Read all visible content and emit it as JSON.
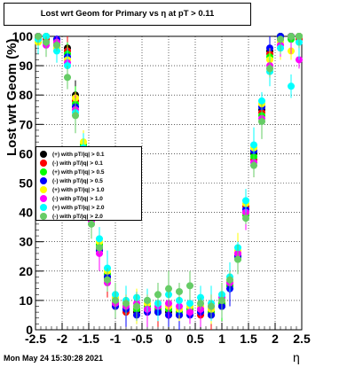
{
  "timestamp": "Mon May 24 15:30:28 2021",
  "chart_data": {
    "type": "scatter",
    "title": "Lost wrt Geom for Primary vs   η at pT > 0.11",
    "ylabel": "Lost wrt Geom (%)",
    "xlabel": "η",
    "xlim": [
      -2.5,
      2.5
    ],
    "ylim": [
      0,
      100
    ],
    "xticks": [
      "-2.5",
      "-2",
      "-1.5",
      "-1",
      "-0.5",
      "0",
      "0.5",
      "1",
      "1.5",
      "2",
      "2.5"
    ],
    "yticks": [
      "0",
      "10",
      "20",
      "30",
      "40",
      "50",
      "60",
      "70",
      "80",
      "90",
      "100"
    ],
    "grid": true,
    "legend_position": "left-middle",
    "series": [
      {
        "name": "(+) with pT/|q| > 0.1",
        "color": "#000000",
        "x": [
          -2.45,
          -2.3,
          -2.1,
          -1.9,
          -1.75,
          -1.6,
          -1.45,
          -1.3,
          -1.15,
          -1.0,
          -0.8,
          -0.6,
          -0.4,
          -0.2,
          0.0,
          0.2,
          0.4,
          0.6,
          0.8,
          1.0,
          1.15,
          1.3,
          1.45,
          1.6,
          1.75,
          1.9,
          2.1,
          2.3,
          2.45
        ],
        "y": [
          100,
          100,
          99,
          96,
          80,
          62,
          40,
          28,
          18,
          9,
          7,
          6,
          7,
          6,
          6,
          5,
          6,
          6,
          5,
          8,
          15,
          25,
          40,
          60,
          75,
          95,
          100,
          100,
          100
        ]
      },
      {
        "name": "(-) with pT/|q| > 0.1",
        "color": "#ff0000",
        "x": [
          -2.45,
          -2.3,
          -2.1,
          -1.9,
          -1.75,
          -1.6,
          -1.45,
          -1.3,
          -1.15,
          -1.0,
          -0.8,
          -0.6,
          -0.4,
          -0.2,
          0.0,
          0.2,
          0.4,
          0.6,
          0.8,
          1.0,
          1.15,
          1.3,
          1.45,
          1.6,
          1.75,
          1.9,
          2.1,
          2.3,
          2.45
        ],
        "y": [
          100,
          99,
          98,
          95,
          78,
          60,
          38,
          27,
          17,
          8,
          6,
          7,
          6,
          7,
          5,
          6,
          7,
          5,
          6,
          9,
          16,
          26,
          42,
          58,
          74,
          94,
          99,
          100,
          99
        ]
      },
      {
        "name": "(+) with pT/|q| > 0.5",
        "color": "#00ff00",
        "x": [
          -2.45,
          -2.3,
          -2.1,
          -1.9,
          -1.75,
          -1.6,
          -1.45,
          -1.3,
          -1.15,
          -1.0,
          -0.8,
          -0.6,
          -0.4,
          -0.2,
          0.0,
          0.2,
          0.4,
          0.6,
          0.8,
          1.0,
          1.15,
          1.3,
          1.45,
          1.6,
          1.75,
          1.9,
          2.1,
          2.3,
          2.45
        ],
        "y": [
          99,
          100,
          97,
          94,
          77,
          63,
          41,
          29,
          19,
          10,
          8,
          7,
          8,
          7,
          7,
          6,
          7,
          7,
          6,
          9,
          15,
          24,
          39,
          59,
          73,
          93,
          100,
          99,
          100
        ]
      },
      {
        "name": "(-) with pT/|q| > 0.5",
        "color": "#0000ff",
        "x": [
          -2.45,
          -2.3,
          -2.1,
          -1.9,
          -1.75,
          -1.6,
          -1.45,
          -1.3,
          -1.15,
          -1.0,
          -0.8,
          -0.6,
          -0.4,
          -0.2,
          0.0,
          0.2,
          0.4,
          0.6,
          0.8,
          1.0,
          1.15,
          1.3,
          1.45,
          1.6,
          1.75,
          1.9,
          2.1,
          2.3,
          2.45
        ],
        "y": [
          100,
          98,
          99,
          93,
          76,
          61,
          39,
          27,
          18,
          8,
          7,
          5,
          6,
          6,
          5,
          5,
          5,
          6,
          5,
          8,
          14,
          25,
          41,
          61,
          76,
          96,
          100,
          100,
          100
        ]
      },
      {
        "name": "(+) with pT/|q| > 1.0",
        "color": "#ffff00",
        "x": [
          -2.45,
          -2.3,
          -2.1,
          -1.9,
          -1.75,
          -1.6,
          -1.45,
          -1.3,
          -1.15,
          -1.0,
          -0.8,
          -0.6,
          -0.4,
          -0.2,
          0.0,
          0.2,
          0.4,
          0.6,
          0.8,
          1.0,
          1.15,
          1.3,
          1.45,
          1.6,
          1.75,
          1.9,
          2.1,
          2.3,
          2.45
        ],
        "y": [
          98,
          100,
          96,
          92,
          79,
          64,
          42,
          30,
          20,
          11,
          9,
          8,
          9,
          8,
          8,
          7,
          8,
          8,
          7,
          10,
          17,
          27,
          43,
          62,
          77,
          92,
          98,
          95,
          100
        ]
      },
      {
        "name": "(-) with pT/|q| > 1.0",
        "color": "#ff00ff",
        "x": [
          -2.45,
          -2.3,
          -2.1,
          -1.9,
          -1.75,
          -1.6,
          -1.45,
          -1.3,
          -1.15,
          -1.0,
          -0.8,
          -0.6,
          -0.4,
          -0.2,
          0.0,
          0.2,
          0.4,
          0.6,
          0.8,
          1.0,
          1.15,
          1.3,
          1.45,
          1.6,
          1.75,
          1.9,
          2.1,
          2.3,
          2.45
        ],
        "y": [
          100,
          97,
          98,
          91,
          75,
          59,
          37,
          26,
          16,
          9,
          8,
          9,
          7,
          8,
          9,
          8,
          6,
          7,
          8,
          11,
          16,
          26,
          40,
          57,
          72,
          90,
          97,
          100,
          92
        ]
      },
      {
        "name": "(+) with pT/|q| > 2.0",
        "color": "#00ffff",
        "x": [
          -2.45,
          -2.3,
          -2.1,
          -1.9,
          -1.75,
          -1.6,
          -1.45,
          -1.3,
          -1.15,
          -1.0,
          -0.8,
          -0.6,
          -0.4,
          -0.2,
          0.0,
          0.2,
          0.4,
          0.6,
          0.8,
          1.0,
          1.15,
          1.3,
          1.45,
          1.6,
          1.75,
          1.9,
          2.1,
          2.3,
          2.45
        ],
        "y": [
          99,
          100,
          95,
          90,
          74,
          62,
          40,
          31,
          21,
          12,
          10,
          11,
          10,
          9,
          12,
          10,
          9,
          11,
          9,
          12,
          18,
          28,
          44,
          63,
          78,
          88,
          96,
          83,
          98
        ]
      },
      {
        "name": "(-) with pT/|q| > 2.0",
        "color": "#66cc66",
        "x": [
          -2.45,
          -2.3,
          -2.1,
          -1.9,
          -1.75,
          -1.6,
          -1.45,
          -1.3,
          -1.15,
          -1.0,
          -0.8,
          -0.6,
          -0.4,
          -0.2,
          0.0,
          0.2,
          0.4,
          0.6,
          0.8,
          1.0,
          1.15,
          1.3,
          1.45,
          1.6,
          1.75,
          1.9,
          2.1,
          2.3,
          2.45
        ],
        "y": [
          100,
          98,
          97,
          86,
          73,
          58,
          36,
          28,
          17,
          10,
          9,
          8,
          10,
          12,
          14,
          13,
          15,
          9,
          8,
          10,
          17,
          24,
          38,
          56,
          71,
          89,
          99,
          100,
          100
        ]
      }
    ]
  }
}
